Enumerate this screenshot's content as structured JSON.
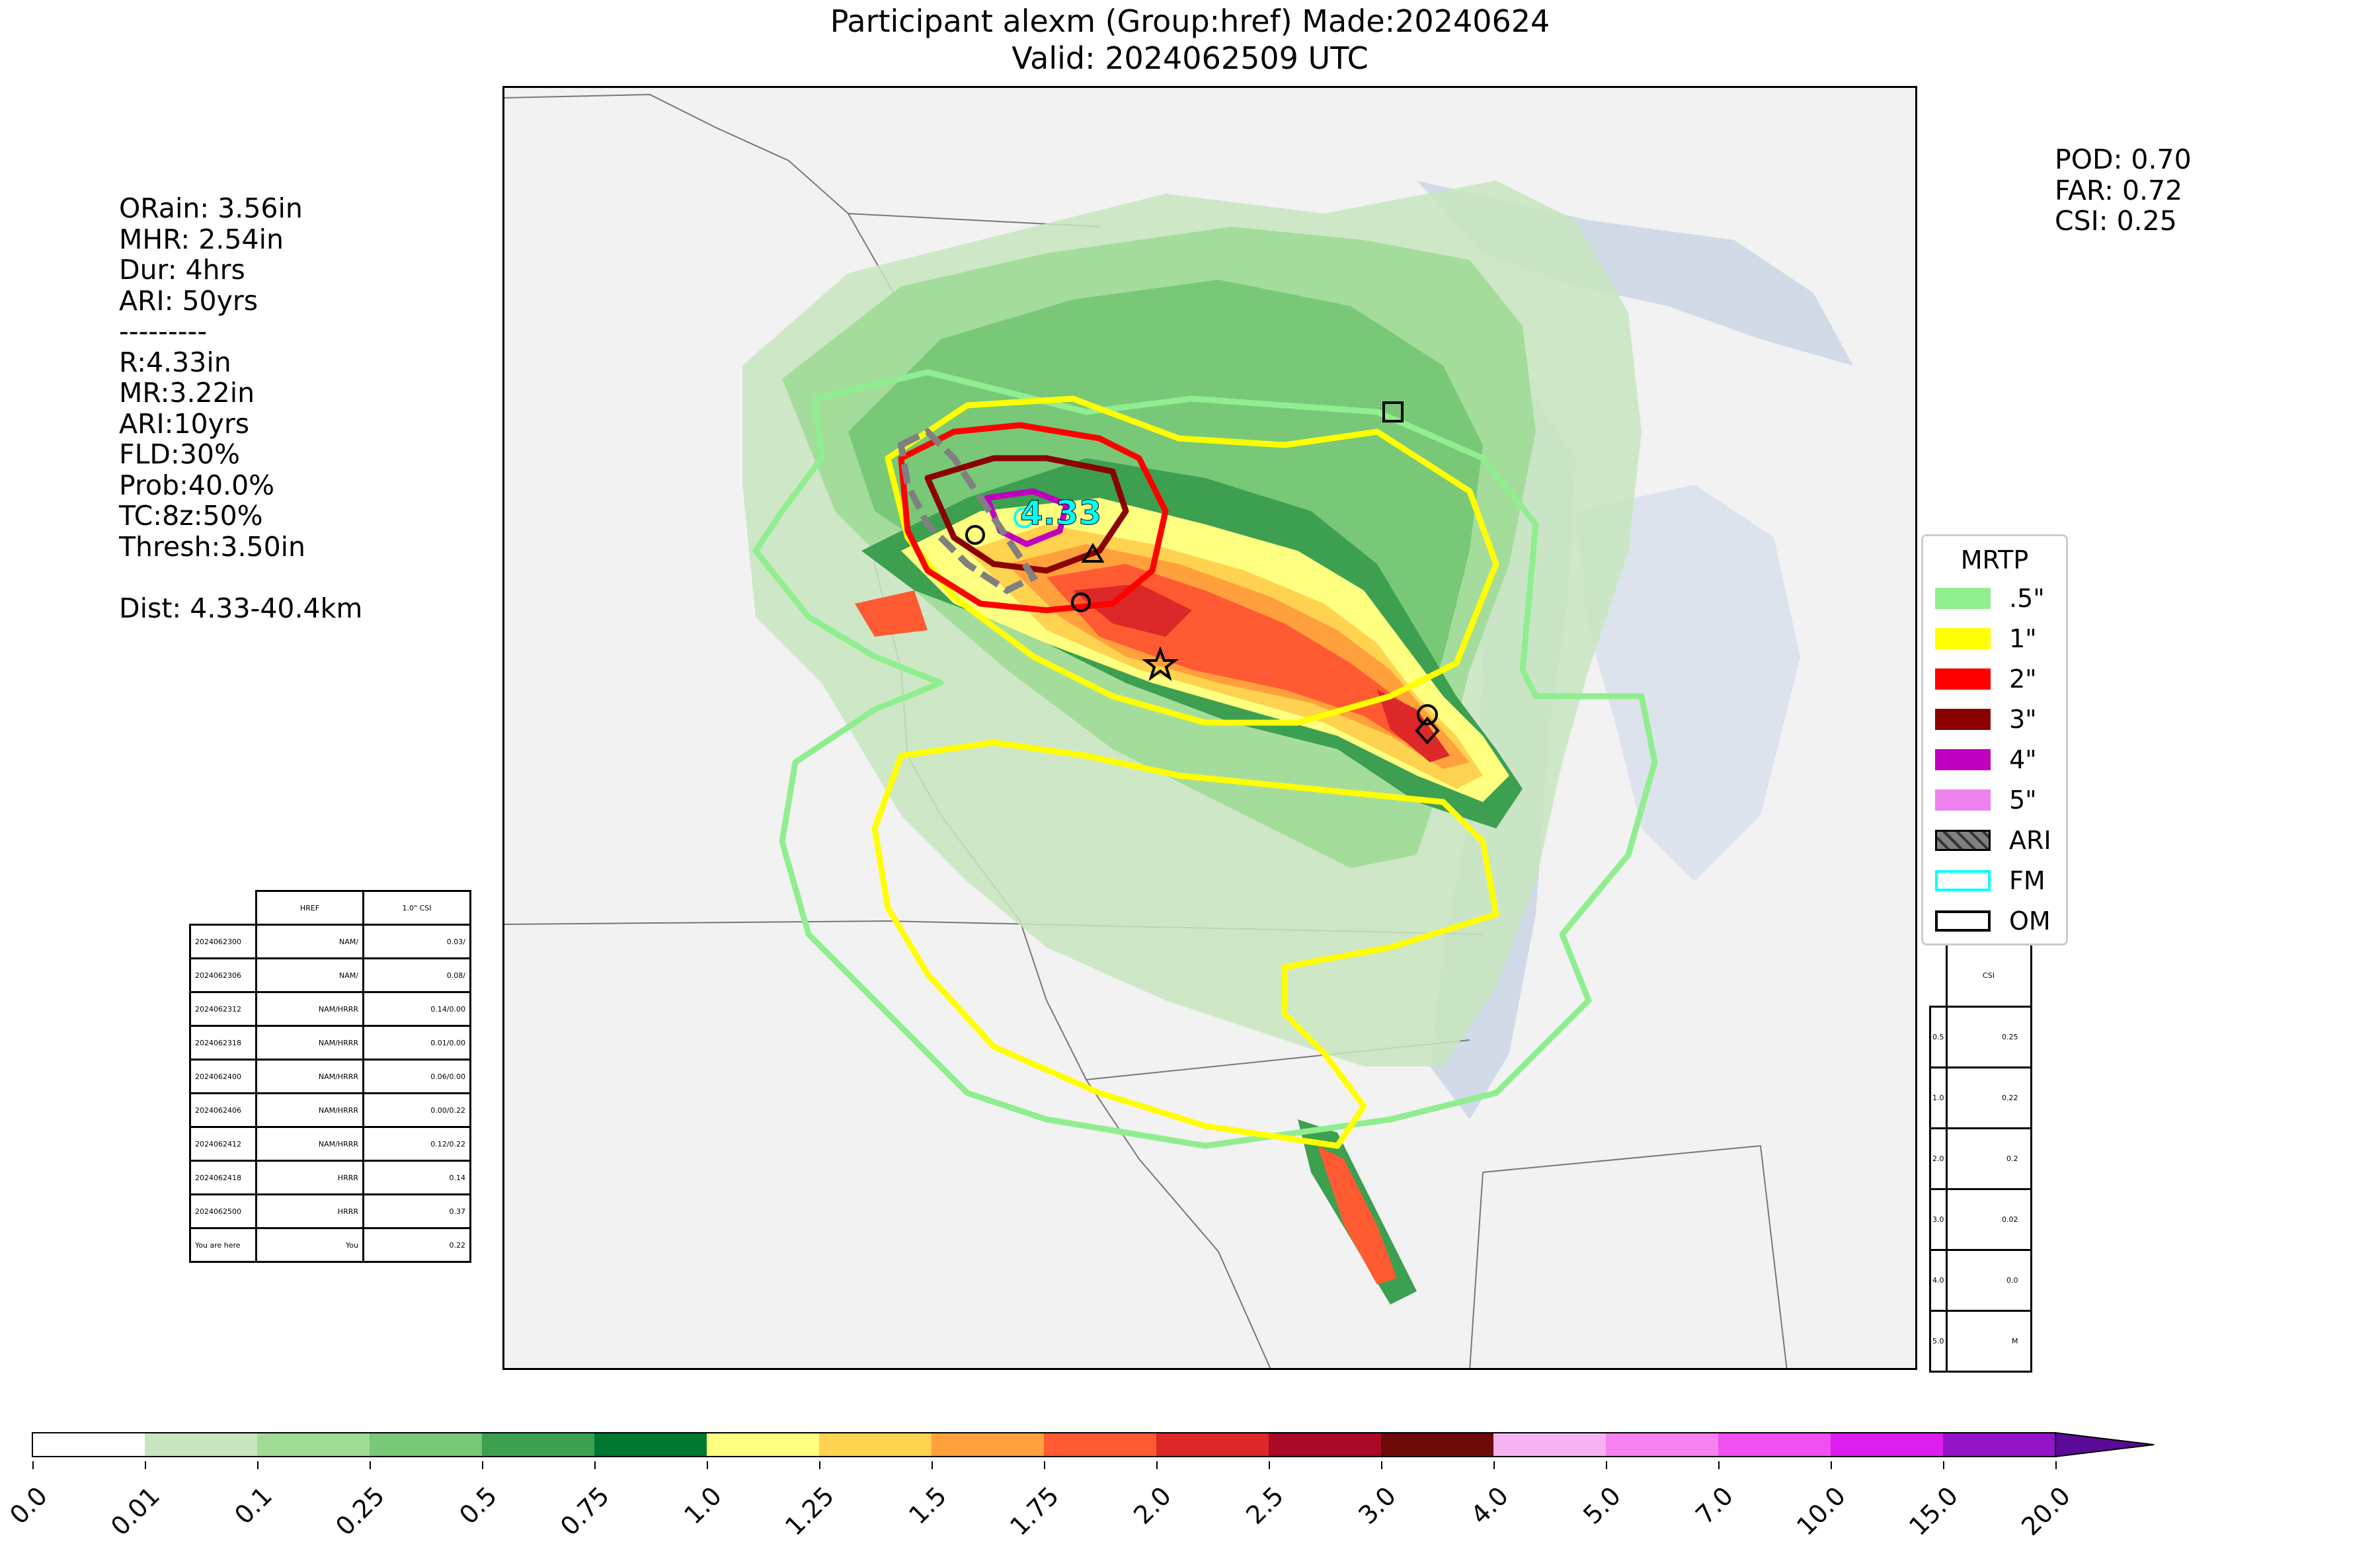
{
  "header": {
    "title_line1": "Participant alexm (Group:href) Made:20240624",
    "title_line2": "Valid: 2024062509 UTC"
  },
  "stats_left": {
    "lines": [
      "ORain: 3.56in",
      "MHR: 2.54in",
      "Dur: 4hrs",
      "ARI: 50yrs",
      "---------",
      "R:4.33in",
      "MR:3.22in",
      "ARI:10yrs",
      "FLD:30%",
      "Prob:40.0%",
      "TC:8z:50%",
      "Thresh:3.50in",
      "",
      "Dist: 4.33-40.4km"
    ]
  },
  "stats_right": {
    "pod": "POD: 0.70",
    "far": "FAR: 0.72",
    "csi": "CSI: 0.25"
  },
  "map": {
    "max_label": "4.33",
    "legend_title": "MRTP",
    "legend": [
      {
        "label": ".5\"",
        "color": "#90ee90",
        "kind": "fill"
      },
      {
        "label": "1\"",
        "color": "#ffff00",
        "kind": "fill"
      },
      {
        "label": "2\"",
        "color": "#ff0000",
        "kind": "fill"
      },
      {
        "label": "3\"",
        "color": "#8b0000",
        "kind": "fill"
      },
      {
        "label": "4\"",
        "color": "#c000c0",
        "kind": "fill"
      },
      {
        "label": "5\"",
        "color": "#ee82ee",
        "kind": "fill"
      },
      {
        "label": "ARI",
        "color": "#808080",
        "kind": "hatch"
      },
      {
        "label": "FM",
        "color": "#00ffff",
        "kind": "outline"
      },
      {
        "label": "OM",
        "color": "#000000",
        "kind": "outline"
      }
    ]
  },
  "href_table": {
    "headers": [
      "HREF",
      "1.0\" CSI"
    ],
    "rows": [
      [
        "2024062300",
        "NAM/",
        "0.03/"
      ],
      [
        "2024062306",
        "NAM/",
        "0.08/"
      ],
      [
        "2024062312",
        "NAM/HRRR",
        "0.14/0.00"
      ],
      [
        "2024062318",
        "NAM/HRRR",
        "0.01/0.00"
      ],
      [
        "2024062400",
        "NAM/HRRR",
        "0.06/0.00"
      ],
      [
        "2024062406",
        "NAM/HRRR",
        "0.00/0.22"
      ],
      [
        "2024062412",
        "NAM/HRRR",
        "0.12/0.22"
      ],
      [
        "2024062418",
        "HRRR",
        "0.14"
      ],
      [
        "2024062500",
        "HRRR",
        "0.37"
      ],
      [
        "You are here",
        "You",
        "0.22"
      ]
    ]
  },
  "csi_table": {
    "header": "CSI",
    "rows": [
      [
        "0.5",
        "0.25"
      ],
      [
        "1.0",
        "0.22"
      ],
      [
        "2.0",
        "0.2"
      ],
      [
        "3.0",
        "0.02"
      ],
      [
        "4.0",
        "0.0"
      ],
      [
        "5.0",
        "M"
      ]
    ]
  },
  "colorbar": {
    "labels": [
      "0.0",
      "0.01",
      "0.1",
      "0.25",
      "0.5",
      "0.75",
      "1.0",
      "1.25",
      "1.5",
      "1.75",
      "2.0",
      "2.5",
      "3.0",
      "4.0",
      "5.0",
      "7.0",
      "10.0",
      "15.0",
      "20.0"
    ],
    "colors": [
      "#ffffff",
      "#c8e6c0",
      "#a0dc96",
      "#78c878",
      "#3ca050",
      "#007832",
      "#ffff80",
      "#ffd250",
      "#ffa03c",
      "#ff5a32",
      "#dc2828",
      "#aa0a28",
      "#6e0a0a",
      "#f5b4f0",
      "#f582ee",
      "#f050f0",
      "#dc1eee",
      "#9614c8"
    ]
  }
}
